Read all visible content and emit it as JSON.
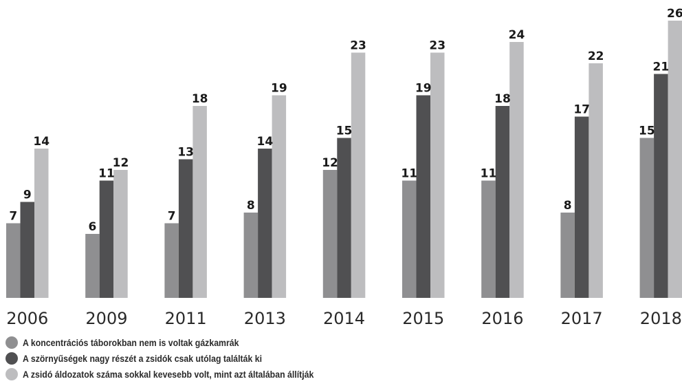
{
  "chart_data": {
    "type": "bar",
    "categories": [
      "2006",
      "2009",
      "2011",
      "2013",
      "2014",
      "2015",
      "2016",
      "2017",
      "2018"
    ],
    "series": [
      {
        "name": "A koncentrációs táborokban nem is voltak gázkamrák",
        "color": "#8f8f91",
        "values": [
          7,
          6,
          7,
          8,
          12,
          11,
          11,
          8,
          15
        ]
      },
      {
        "name": "A szörnyűségek nagy részét a zsidók csak utólag találták ki",
        "color": "#505052",
        "values": [
          9,
          11,
          13,
          14,
          15,
          19,
          18,
          17,
          21
        ]
      },
      {
        "name": "A zsidó áldozatok száma sokkal kevesebb volt, mint azt általában állítják",
        "color": "#bdbdbf",
        "values": [
          14,
          12,
          18,
          19,
          23,
          23,
          24,
          22,
          26
        ]
      }
    ],
    "ylim": [
      0,
      26
    ],
    "grid": false,
    "data_labels": true,
    "legend_position": "bottom-left"
  }
}
